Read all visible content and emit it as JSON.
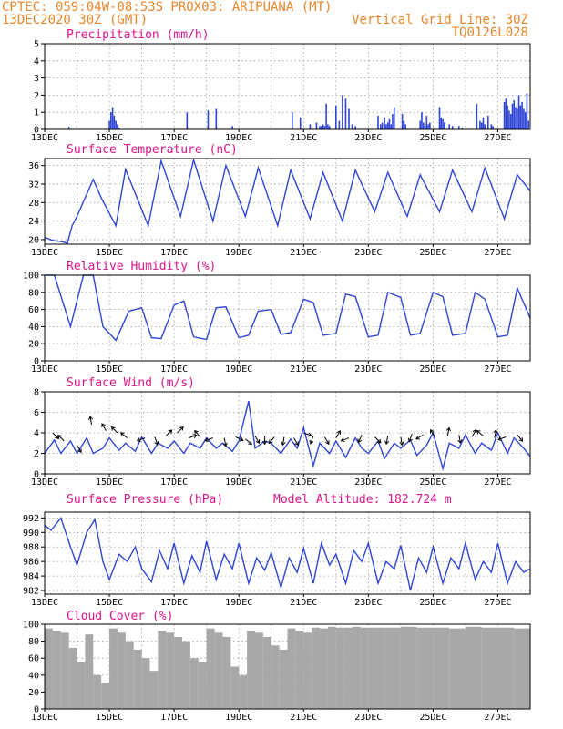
{
  "header": {
    "line1": "CPTEC:  059:04W-08:53S  PROX03: ARIPUANA (MT)",
    "line2_left": "13DEC2020 30Z (GMT)",
    "line2_right": "Vertical Grid Line: 30Z",
    "line3_right": "TQ0126L028"
  },
  "x_labels": [
    "13DEC",
    "15DEC",
    "17DEC",
    "19DEC",
    "21DEC",
    "23DEC",
    "25DEC",
    "27DEC"
  ],
  "colors": {
    "line": "#2f45d6",
    "bars": "#2f45d6",
    "cloud": "#a8a8a8",
    "title": "#e0148a",
    "header": "#e8862b"
  },
  "chart_data": [
    {
      "type": "bar",
      "title": "Precipitation (mm/h)",
      "ylim": [
        0,
        5
      ],
      "yticks": [
        "0",
        "1",
        "2",
        "3",
        "4",
        "5"
      ],
      "x_start": "2020-12-13T00:00Z",
      "x_end": "2020-12-28T00:00Z",
      "x": [
        0.75,
        2.0,
        2.05,
        2.1,
        2.15,
        2.2,
        2.25,
        2.3,
        4.4,
        5.05,
        5.3,
        5.8,
        7.65,
        7.9,
        8.2,
        8.4,
        8.5,
        8.55,
        8.6,
        8.65,
        8.7,
        8.75,
        8.8,
        9.0,
        9.1,
        9.2,
        9.3,
        9.4,
        9.5,
        9.6,
        10.3,
        10.38,
        10.43,
        10.5,
        10.55,
        10.6,
        10.65,
        10.7,
        10.75,
        10.8,
        11.05,
        11.1,
        11.15,
        11.6,
        11.65,
        11.7,
        11.75,
        11.8,
        11.85,
        11.9,
        12.2,
        12.25,
        12.3,
        12.35,
        12.5,
        12.6,
        12.8,
        12.9,
        13.35,
        13.45,
        13.5,
        13.55,
        13.6,
        13.7,
        13.8,
        13.85,
        14.2,
        14.25,
        14.3,
        14.35,
        14.4,
        14.45,
        14.5,
        14.55,
        14.6,
        14.65,
        14.7,
        14.75,
        14.8,
        14.85,
        14.9,
        14.95
      ],
      "values": [
        0.15,
        0.5,
        1.0,
        1.3,
        0.8,
        0.5,
        0.3,
        0.1,
        1.0,
        1.1,
        1.2,
        0.2,
        1.0,
        0.7,
        0.3,
        0.4,
        0.2,
        0.2,
        0.3,
        0.2,
        1.5,
        0.3,
        0.2,
        1.4,
        0.5,
        2.0,
        1.8,
        1.2,
        0.3,
        0.2,
        0.8,
        0.3,
        0.4,
        0.7,
        0.3,
        0.4,
        0.6,
        0.3,
        0.9,
        1.3,
        0.9,
        0.5,
        0.3,
        0.5,
        1.0,
        0.4,
        0.2,
        0.8,
        0.3,
        0.4,
        1.3,
        0.7,
        0.6,
        0.4,
        0.3,
        0.2,
        0.2,
        0.1,
        1.5,
        0.5,
        0.4,
        0.7,
        0.3,
        0.8,
        0.3,
        0.2,
        1.6,
        1.8,
        1.4,
        1.1,
        0.9,
        1.5,
        1.7,
        1.3,
        1.2,
        2.0,
        1.4,
        1.6,
        1.2,
        1.0,
        2.1,
        0.5
      ]
    },
    {
      "type": "line",
      "title": "Surface Temperature (nC)",
      "ylim": [
        19,
        37.5
      ],
      "yticks": [
        "20",
        "24",
        "28",
        "32",
        "36"
      ],
      "x": [
        0,
        0.25,
        0.5,
        0.7,
        0.85,
        1.0,
        1.5,
        1.75,
        2.2,
        2.5,
        3.2,
        3.6,
        4.2,
        4.6,
        5.2,
        5.6,
        6.2,
        6.6,
        7.2,
        7.6,
        8.2,
        8.6,
        9.2,
        9.6,
        10.2,
        10.6,
        11.2,
        11.6,
        12.2,
        12.6,
        13.2,
        13.6,
        14.2,
        14.6,
        15
      ],
      "values": [
        20.5,
        19.8,
        19.6,
        19.2,
        23,
        25,
        33,
        29,
        23,
        35.2,
        23,
        37,
        25,
        37.2,
        24,
        36,
        25,
        35.5,
        23,
        35,
        24.5,
        34.5,
        24,
        35,
        26,
        34.5,
        25,
        34,
        26,
        35,
        26,
        35.5,
        24.5,
        34,
        30.5
      ]
    },
    {
      "type": "line",
      "title": "Relative Humidity (%)",
      "ylim": [
        0,
        100
      ],
      "yticks": [
        "0",
        "20",
        "40",
        "60",
        "80",
        "100"
      ],
      "x": [
        0,
        0.3,
        0.8,
        1.2,
        1.5,
        1.8,
        2.2,
        2.6,
        3.0,
        3.3,
        3.6,
        4.0,
        4.3,
        4.6,
        5.0,
        5.3,
        5.6,
        6.0,
        6.3,
        6.6,
        7.0,
        7.3,
        7.6,
        8.0,
        8.3,
        8.6,
        9.0,
        9.3,
        9.6,
        10.0,
        10.3,
        10.6,
        11.0,
        11.3,
        11.6,
        12.0,
        12.3,
        12.6,
        13.0,
        13.3,
        13.6,
        14.0,
        14.3,
        14.6,
        15.0
      ],
      "values": [
        100,
        100,
        40,
        100,
        100,
        40,
        24,
        58,
        62,
        27,
        26,
        65,
        70,
        28,
        25,
        62,
        63,
        27,
        30,
        58,
        60,
        31,
        33,
        72,
        68,
        30,
        32,
        78,
        75,
        28,
        30,
        80,
        74,
        30,
        32,
        80,
        75,
        30,
        32,
        80,
        72,
        28,
        30,
        85,
        50
      ]
    },
    {
      "type": "line",
      "title": "Surface Wind (m/s)",
      "ylim": [
        0,
        8
      ],
      "yticks": [
        "0",
        "2",
        "4",
        "6",
        "8"
      ],
      "x": [
        0,
        0.3,
        0.5,
        0.8,
        1.0,
        1.3,
        1.5,
        1.8,
        2.0,
        2.3,
        2.5,
        2.8,
        3.0,
        3.3,
        3.5,
        3.8,
        4.0,
        4.3,
        4.5,
        4.8,
        5.0,
        5.3,
        5.5,
        5.8,
        6.0,
        6.3,
        6.5,
        6.8,
        7.0,
        7.3,
        7.6,
        7.8,
        8.0,
        8.3,
        8.5,
        8.8,
        9.0,
        9.3,
        9.6,
        9.8,
        10.0,
        10.3,
        10.5,
        10.8,
        11.0,
        11.3,
        11.5,
        11.8,
        12.0,
        12.3,
        12.5,
        12.8,
        13.0,
        13.3,
        13.5,
        13.8,
        14.0,
        14.3,
        14.5,
        14.8,
        15.0
      ],
      "values": [
        2.0,
        3.3,
        2.0,
        3.2,
        2.0,
        3.5,
        2.0,
        2.5,
        3.5,
        2.3,
        3.0,
        2.2,
        3.6,
        2.0,
        3.0,
        2.5,
        3.2,
        2.0,
        3.0,
        2.5,
        3.5,
        2.5,
        3.0,
        2.2,
        3.2,
        7.1,
        2.5,
        3.2,
        3.0,
        2.0,
        3.4,
        2.5,
        4.5,
        0.8,
        3.0,
        2.0,
        3.2,
        1.6,
        3.5,
        2.5,
        2.0,
        3.2,
        1.5,
        3.0,
        2.5,
        3.3,
        1.8,
        2.8,
        4.0,
        0.5,
        3.0,
        2.5,
        3.8,
        2.0,
        3.0,
        2.3,
        4.0,
        2.0,
        3.5,
        2.5,
        1.7
      ],
      "barbs": {
        "x": [
          0.25,
          0.6,
          1.0,
          1.45,
          1.9,
          2.25,
          2.55,
          3.1,
          3.4,
          3.75,
          4.1,
          4.45,
          4.8,
          5.2,
          5.55,
          5.9,
          6.2,
          6.5,
          6.8,
          7.1,
          7.4,
          7.7,
          8.0,
          8.3,
          8.65,
          9.0,
          9.4,
          9.8,
          10.2,
          10.6,
          11.0,
          11.35,
          11.7,
          12.05,
          12.45,
          12.8,
          13.2,
          13.55,
          13.9,
          14.25,
          14.6
        ],
        "speed": [
          4.0,
          3.2,
          2.8,
          4.8,
          4.2,
          4.0,
          3.5,
          3.5,
          3.6,
          3.7,
          4.0,
          3.5,
          3.6,
          3.5,
          3.5,
          3.6,
          3.4,
          3.7,
          3.7,
          3.6,
          3.6,
          3.5,
          4.0,
          3.7,
          3.6,
          3.5,
          3.5,
          3.8,
          3.6,
          3.7,
          3.6,
          3.9,
          3.8,
          3.6,
          3.7,
          3.8,
          3.6,
          3.7,
          3.5,
          3.6,
          3.8
        ],
        "dir_deg": [
          315,
          135,
          300,
          100,
          120,
          135,
          140,
          200,
          290,
          45,
          45,
          20,
          130,
          200,
          280,
          335,
          320,
          300,
          270,
          230,
          260,
          300,
          340,
          250,
          300,
          60,
          200,
          245,
          315,
          260,
          280,
          250,
          210,
          120,
          80,
          280,
          60,
          140,
          80,
          200,
          310
        ]
      }
    },
    {
      "type": "line",
      "title": "Surface Pressure (hPa)",
      "annotation": "Model Altitude: 182.724 m",
      "ylim": [
        981.5,
        992.8
      ],
      "yticks": [
        "982",
        "984",
        "986",
        "988",
        "990",
        "992"
      ],
      "x": [
        0,
        0.2,
        0.5,
        0.8,
        1.0,
        1.3,
        1.55,
        1.8,
        2.0,
        2.3,
        2.55,
        2.8,
        3.0,
        3.3,
        3.55,
        3.8,
        4.0,
        4.3,
        4.55,
        4.8,
        5.0,
        5.3,
        5.55,
        5.8,
        6.0,
        6.3,
        6.55,
        6.8,
        7.0,
        7.3,
        7.55,
        7.8,
        8.0,
        8.3,
        8.55,
        8.8,
        9.0,
        9.3,
        9.55,
        9.8,
        10.0,
        10.3,
        10.55,
        10.8,
        11.0,
        11.3,
        11.55,
        11.8,
        12.0,
        12.3,
        12.55,
        12.8,
        13.0,
        13.3,
        13.55,
        13.8,
        14.0,
        14.3,
        14.55,
        14.8,
        15.0
      ],
      "values": [
        991,
        990.3,
        992,
        988,
        985.5,
        990,
        991.8,
        986,
        983.5,
        987,
        986,
        988,
        985,
        983.2,
        987.5,
        985,
        988.5,
        983,
        986.8,
        984.5,
        988.8,
        983.5,
        987,
        985,
        988.5,
        983,
        986.5,
        984.8,
        987.2,
        982.4,
        986.5,
        984.5,
        987.8,
        983,
        988.5,
        985.5,
        987,
        983,
        987.5,
        986,
        988.5,
        983,
        986,
        985,
        988.2,
        982,
        986.5,
        984.5,
        988,
        983,
        986.5,
        985,
        988.5,
        983.5,
        986,
        984.5,
        988.5,
        983,
        986,
        984.5,
        985
      ]
    },
    {
      "type": "bar",
      "title": "Cloud Cover (%)",
      "ylim": [
        0,
        100
      ],
      "yticks": [
        "0",
        "20",
        "40",
        "60",
        "80",
        "100"
      ],
      "x": [
        0,
        0.25,
        0.5,
        0.75,
        1.0,
        1.25,
        1.5,
        1.75,
        2.0,
        2.25,
        2.5,
        2.75,
        3.0,
        3.25,
        3.5,
        3.75,
        4.0,
        4.25,
        4.5,
        4.75,
        5.0,
        5.25,
        5.5,
        5.75,
        6.0,
        6.25,
        6.5,
        6.75,
        7.0,
        7.25,
        7.5,
        7.75,
        8.0,
        8.25,
        8.5,
        8.75,
        9.0,
        9.25,
        9.5,
        9.75,
        10.0,
        10.5,
        11.0,
        11.5,
        12.0,
        12.5,
        13.0,
        13.5,
        14.0,
        14.5,
        15.0
      ],
      "values": [
        95,
        92,
        90,
        72,
        55,
        88,
        40,
        30,
        95,
        90,
        80,
        70,
        60,
        45,
        92,
        90,
        85,
        80,
        60,
        55,
        95,
        90,
        85,
        50,
        40,
        92,
        90,
        85,
        75,
        70,
        95,
        92,
        90,
        96,
        95,
        97,
        96,
        96,
        97,
        96,
        96,
        96,
        97,
        96,
        96,
        95,
        97,
        96,
        96,
        95,
        96
      ]
    }
  ]
}
